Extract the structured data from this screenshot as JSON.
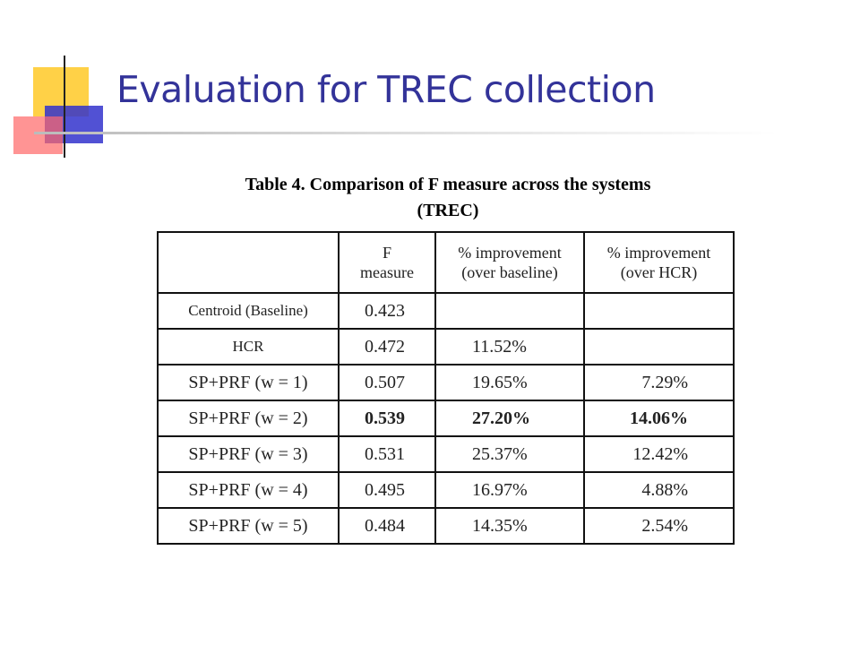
{
  "header": {
    "title": "Evaluation for TREC collection"
  },
  "table": {
    "caption": [
      "Table 4. Comparison of F measure across the systems",
      "(TREC)"
    ],
    "columns": [
      [],
      [
        "F",
        "measure"
      ],
      [
        "% improvement",
        "(over baseline)"
      ],
      [
        "% improvement",
        "(over HCR)"
      ]
    ],
    "rows": [
      [
        "Centroid (Baseline)",
        "0.423",
        null,
        null
      ],
      [
        "HCR",
        "0.472",
        "11.52%",
        null
      ],
      [
        "SP+PRF (w = 1)",
        "0.507",
        "19.65%",
        "7.29%"
      ],
      [
        "SP+PRF (w = 2)",
        "0.539",
        "27.20%",
        "14.06%"
      ],
      [
        "SP+PRF (w = 3)",
        "0.531",
        "25.37%",
        "12.42%"
      ],
      [
        "SP+PRF (w = 4)",
        "0.495",
        "16.97%",
        "4.88%"
      ],
      [
        "SP+PRF (w = 5)",
        "0.484",
        "14.35%",
        "2.54%"
      ]
    ]
  }
}
